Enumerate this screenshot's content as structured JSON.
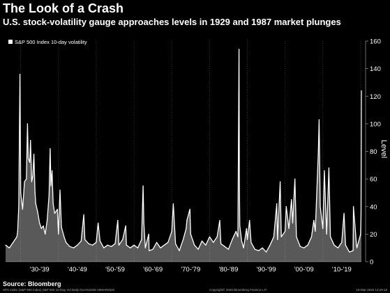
{
  "title": "The Look of a Crash",
  "subtitle": "U.S. stock-volatility gauge approaches levels in 1929 and 1987 market plunges",
  "source": "Source: Bloomberg",
  "footer": {
    "left": "SPX Index (S&P 500 Index) S&P 500 10-Day Vol  Daily 01JAN1926-19MAR2020",
    "middle": "Copyright© 2020 Bloomberg Finance L.P.",
    "right": "19-Mar-2020 13:29:18"
  },
  "colors": {
    "background": "#000000",
    "line": "#ffffff",
    "grid": "#3a3a3a"
  },
  "chart_data": {
    "type": "area",
    "title": "The Look of a Crash",
    "legend": [
      "S&P 500 Index 10-day volatility"
    ],
    "legend_position": "top-left",
    "ylabel": "Level",
    "y_axis_side": "right",
    "ylim": [
      0,
      160
    ],
    "yticks": [
      0,
      20,
      40,
      60,
      80,
      100,
      120,
      140,
      160
    ],
    "xlim": [
      1926,
      2020.2
    ],
    "x_tick_labels": [
      "'30-'39",
      "'40-'49",
      "'50-'59",
      "'60-'69",
      "'70-'79",
      "'80-'89",
      "'90-'99",
      "'00-'09",
      "'10-'19"
    ],
    "grid": "vertical dotted",
    "series": [
      {
        "name": "S&P 500 Index 10-day volatility",
        "x": [
          1926.0,
          1927.0,
          1928.0,
          1929.0,
          1929.2,
          1929.5,
          1929.8,
          1930.0,
          1930.5,
          1931.0,
          1931.5,
          1931.8,
          1932.0,
          1932.4,
          1932.6,
          1932.9,
          1933.2,
          1933.5,
          1933.8,
          1934.0,
          1934.5,
          1935.0,
          1935.5,
          1936.0,
          1936.5,
          1937.0,
          1937.5,
          1937.8,
          1938.0,
          1938.3,
          1938.6,
          1939.0,
          1939.7,
          1940.0,
          1940.4,
          1940.8,
          1941.5,
          1942.0,
          1943.0,
          1944.0,
          1945.0,
          1946.0,
          1946.7,
          1947.0,
          1948.0,
          1949.0,
          1950.0,
          1950.5,
          1951.0,
          1952.0,
          1953.0,
          1954.0,
          1955.0,
          1955.7,
          1956.0,
          1957.0,
          1957.8,
          1958.0,
          1959.0,
          1960.0,
          1961.0,
          1962.0,
          1962.4,
          1962.6,
          1963.0,
          1963.9,
          1964.0,
          1965.0,
          1966.0,
          1967.0,
          1968.0,
          1969.0,
          1970.0,
          1970.4,
          1971.0,
          1972.0,
          1973.0,
          1973.8,
          1974.0,
          1974.8,
          1975.0,
          1976.0,
          1977.0,
          1978.0,
          1979.0,
          1980.0,
          1981.0,
          1982.0,
          1982.7,
          1983.0,
          1984.0,
          1985.0,
          1986.0,
          1987.0,
          1987.5,
          1987.8,
          1987.9,
          1988.0,
          1988.5,
          1989.0,
          1989.8,
          1990.0,
          1990.6,
          1991.0,
          1992.0,
          1993.0,
          1994.0,
          1995.0,
          1996.0,
          1997.0,
          1997.8,
          1998.0,
          1998.7,
          1999.0,
          2000.0,
          2000.3,
          2001.0,
          2001.7,
          2002.0,
          2002.6,
          2003.0,
          2004.0,
          2005.0,
          2006.0,
          2007.0,
          2007.6,
          2008.0,
          2008.8,
          2009.0,
          2009.3,
          2010.0,
          2010.4,
          2011.0,
          2011.6,
          2012.0,
          2013.0,
          2014.0,
          2015.0,
          2015.6,
          2016.0,
          2017.0,
          2018.0,
          2018.1,
          2018.9,
          2019.0,
          2019.5,
          2020.0,
          2020.1,
          2020.2
        ],
        "values": [
          12,
          10,
          14,
          18,
          22,
          40,
          136,
          50,
          38,
          58,
          60,
          100,
          75,
          72,
          88,
          58,
          62,
          78,
          50,
          42,
          36,
          28,
          24,
          26,
          20,
          30,
          48,
          82,
          55,
          66,
          42,
          35,
          38,
          20,
          52,
          25,
          18,
          14,
          11,
          10,
          12,
          15,
          34,
          16,
          13,
          12,
          14,
          28,
          15,
          10,
          12,
          11,
          13,
          30,
          12,
          16,
          26,
          12,
          10,
          12,
          10,
          16,
          55,
          28,
          10,
          20,
          8,
          9,
          14,
          10,
          12,
          14,
          22,
          42,
          13,
          8,
          16,
          24,
          30,
          38,
          20,
          12,
          9,
          15,
          12,
          18,
          14,
          18,
          30,
          13,
          11,
          9,
          16,
          22,
          18,
          154,
          60,
          26,
          15,
          10,
          24,
          16,
          30,
          14,
          9,
          8,
          10,
          7,
          12,
          18,
          42,
          16,
          58,
          18,
          22,
          40,
          24,
          45,
          28,
          60,
          18,
          11,
          10,
          12,
          18,
          30,
          22,
          80,
          103,
          40,
          24,
          66,
          20,
          68,
          18,
          12,
          10,
          14,
          35,
          12,
          7,
          8,
          40,
          12,
          10,
          15,
          20,
          35,
          124
        ]
      }
    ],
    "annotations": []
  }
}
